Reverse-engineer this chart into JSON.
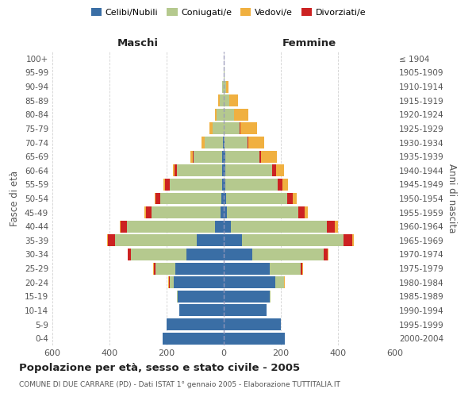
{
  "age_groups": [
    "0-4",
    "5-9",
    "10-14",
    "15-19",
    "20-24",
    "25-29",
    "30-34",
    "35-39",
    "40-44",
    "45-49",
    "50-54",
    "55-59",
    "60-64",
    "65-69",
    "70-74",
    "75-79",
    "80-84",
    "85-89",
    "90-94",
    "95-99",
    "100+"
  ],
  "birth_years": [
    "2000-2004",
    "1995-1999",
    "1990-1994",
    "1985-1989",
    "1980-1984",
    "1975-1979",
    "1970-1974",
    "1965-1969",
    "1960-1964",
    "1955-1959",
    "1950-1954",
    "1945-1949",
    "1940-1944",
    "1935-1939",
    "1930-1934",
    "1925-1929",
    "1920-1924",
    "1915-1919",
    "1910-1914",
    "1905-1909",
    "≤ 1904"
  ],
  "maschi": {
    "celibi": [
      215,
      200,
      155,
      160,
      175,
      170,
      130,
      95,
      30,
      12,
      8,
      5,
      5,
      5,
      2,
      0,
      0,
      0,
      0,
      0,
      0
    ],
    "coniugati": [
      0,
      0,
      0,
      5,
      15,
      70,
      195,
      285,
      310,
      240,
      215,
      185,
      160,
      100,
      65,
      40,
      25,
      15,
      5,
      1,
      0
    ],
    "vedovi": [
      0,
      0,
      0,
      0,
      2,
      2,
      1,
      2,
      5,
      5,
      5,
      5,
      5,
      10,
      12,
      10,
      5,
      5,
      1,
      0,
      0
    ],
    "divorziati": [
      0,
      0,
      0,
      0,
      2,
      5,
      10,
      25,
      20,
      20,
      15,
      15,
      8,
      2,
      0,
      0,
      0,
      0,
      0,
      0,
      0
    ]
  },
  "femmine": {
    "nubili": [
      215,
      200,
      150,
      160,
      180,
      160,
      100,
      65,
      25,
      12,
      8,
      5,
      5,
      5,
      2,
      0,
      0,
      0,
      0,
      0,
      0
    ],
    "coniugate": [
      0,
      0,
      0,
      5,
      30,
      110,
      250,
      355,
      335,
      250,
      215,
      185,
      165,
      120,
      80,
      55,
      35,
      20,
      8,
      2,
      0
    ],
    "vedove": [
      0,
      0,
      0,
      0,
      2,
      2,
      2,
      5,
      10,
      12,
      15,
      20,
      30,
      55,
      55,
      60,
      50,
      30,
      8,
      2,
      0
    ],
    "divorziate": [
      0,
      0,
      0,
      0,
      2,
      5,
      15,
      30,
      30,
      20,
      18,
      15,
      12,
      5,
      5,
      2,
      2,
      0,
      0,
      0,
      0
    ]
  },
  "colors": {
    "celibi": "#3a6ea5",
    "coniugati": "#b5c98e",
    "vedovi": "#f0b040",
    "divorziati": "#cc2222"
  },
  "xlim": 600,
  "title": "Popolazione per età, sesso e stato civile - 2005",
  "subtitle": "COMUNE DI DUE CARRARE (PD) - Dati ISTAT 1° gennaio 2005 - Elaborazione TUTTITALIA.IT",
  "ylabel_left": "Fasce di età",
  "ylabel_right": "Anni di nascita",
  "xlabel_maschi": "Maschi",
  "xlabel_femmine": "Femmine",
  "bg_color": "#ffffff",
  "grid_color": "#cccccc"
}
